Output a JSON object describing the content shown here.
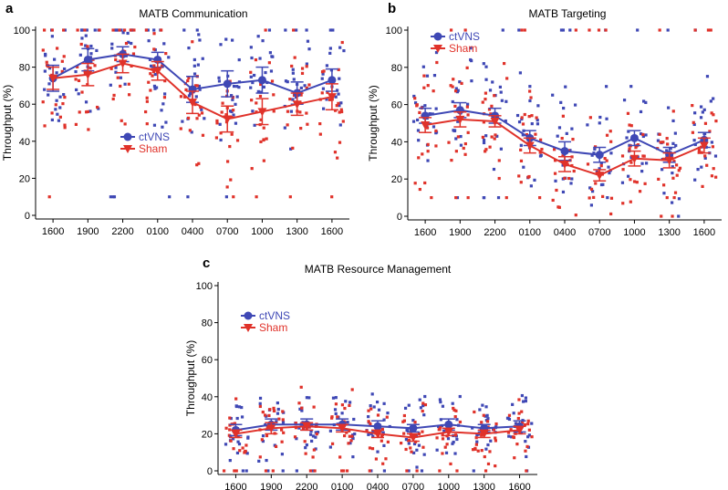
{
  "chart_data": [
    {
      "type": "scatter",
      "panel_letter": "a",
      "title": "MATB  Communication",
      "xlabel": "",
      "ylabel": "Throughput (%)",
      "categories": [
        "1600",
        "1900",
        "2200",
        "0100",
        "0400",
        "0700",
        "1000",
        "1300",
        "1600"
      ],
      "yticks": [
        "0",
        "20",
        "40",
        "60",
        "80",
        "100"
      ],
      "ylim": [
        0,
        100
      ],
      "legend": {
        "position": "center-left",
        "entries": [
          "ctVNS",
          "Sham"
        ]
      },
      "series": [
        {
          "name": "ctVNS",
          "color": "#3f48b5",
          "mean": [
            74,
            84,
            87,
            84,
            68,
            71,
            73,
            66,
            73
          ],
          "sem": [
            7,
            6,
            4,
            4,
            7,
            7,
            7,
            6,
            6
          ]
        },
        {
          "name": "Sham",
          "color": "#e0322a",
          "mean": [
            74,
            76,
            82,
            78,
            61,
            52,
            56,
            60,
            64
          ],
          "sem": [
            6,
            6,
            5,
            5,
            6,
            7,
            7,
            6,
            7
          ]
        }
      ]
    },
    {
      "type": "scatter",
      "panel_letter": "b",
      "title": "MATB  Targeting",
      "xlabel": "",
      "ylabel": "Throughput (%)",
      "categories": [
        "1600",
        "1900",
        "2200",
        "0100",
        "0400",
        "0700",
        "1000",
        "1300",
        "1600"
      ],
      "yticks": [
        "0",
        "20",
        "40",
        "60",
        "80",
        "100"
      ],
      "ylim": [
        0,
        100
      ],
      "legend": {
        "position": "top-left",
        "entries": [
          "ctVNS",
          "Sham"
        ]
      },
      "series": [
        {
          "name": "ctVNS",
          "color": "#3f48b5",
          "mean": [
            54,
            57,
            54,
            42,
            35,
            33,
            42,
            33,
            41
          ],
          "sem": [
            4,
            4,
            4,
            4,
            5,
            4,
            4,
            4,
            4
          ]
        },
        {
          "name": "Sham",
          "color": "#e0322a",
          "mean": [
            49,
            52,
            51,
            38,
            28,
            22,
            31,
            30,
            38
          ],
          "sem": [
            4,
            4,
            3,
            4,
            4,
            3,
            4,
            4,
            4
          ]
        }
      ]
    },
    {
      "type": "scatter",
      "panel_letter": "c",
      "title": "MATB  Resource Management",
      "xlabel": "",
      "ylabel": "Throughput (%)",
      "categories": [
        "1600",
        "1900",
        "2200",
        "0100",
        "0400",
        "0700",
        "1000",
        "1300",
        "1600"
      ],
      "yticks": [
        "0",
        "20",
        "40",
        "60",
        "80",
        "100"
      ],
      "ylim": [
        0,
        100
      ],
      "legend": {
        "position": "top-left",
        "entries": [
          "ctVNS",
          "Sham"
        ]
      },
      "series": [
        {
          "name": "ctVNS",
          "color": "#3f48b5",
          "mean": [
            22,
            25,
            25,
            25,
            24,
            23,
            25,
            23,
            24
          ],
          "sem": [
            3,
            3,
            3,
            3,
            3,
            2,
            3,
            2,
            3
          ]
        },
        {
          "name": "Sham",
          "color": "#e0322a",
          "mean": [
            20,
            23,
            24,
            23,
            20,
            18,
            21,
            20,
            22
          ],
          "sem": [
            2,
            3,
            2,
            2,
            2,
            2,
            2,
            2,
            2
          ]
        }
      ]
    }
  ]
}
